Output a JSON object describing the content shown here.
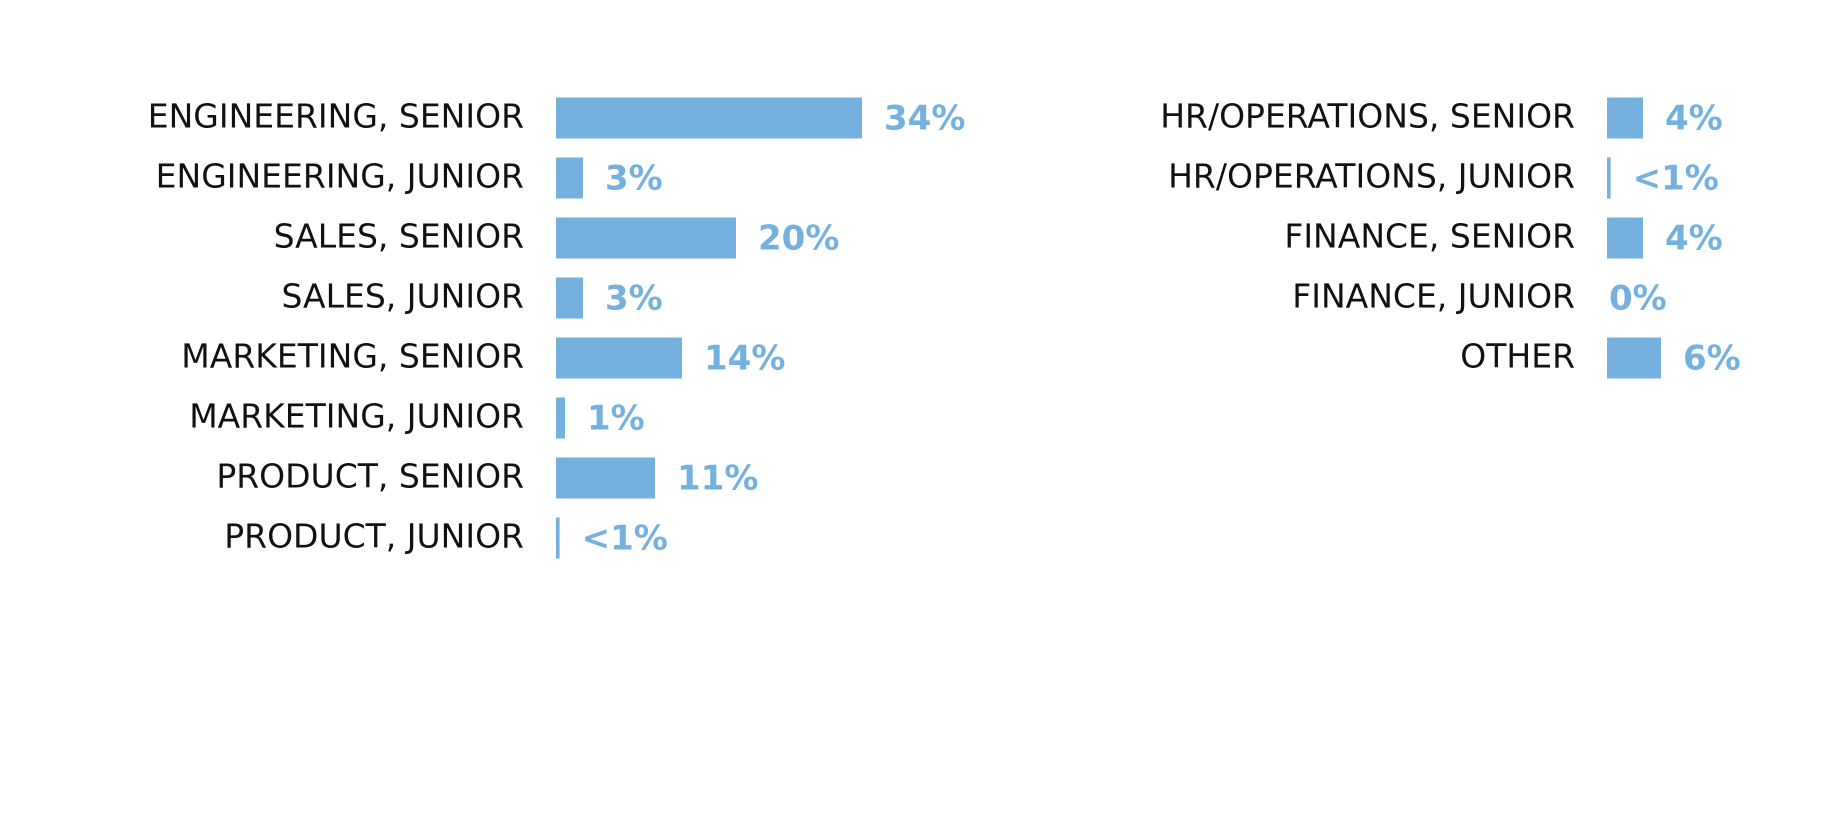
{
  "chart_data": [
    {
      "type": "bar",
      "orientation": "horizontal",
      "color": "#74b1df",
      "categories": [
        "ENGINEERING, SENIOR",
        "ENGINEERING, JUNIOR",
        "SALES, SENIOR",
        "SALES, JUNIOR",
        "MARKETING, SENIOR",
        "MARKETING, JUNIOR",
        "PRODUCT, SENIOR",
        "PRODUCT, JUNIOR"
      ],
      "values": [
        34,
        3,
        20,
        3,
        14,
        1,
        11,
        0.4
      ],
      "value_labels": [
        "34%",
        "3%",
        "20%",
        "3%",
        "14%",
        "1%",
        "11%",
        "<1%"
      ]
    },
    {
      "type": "bar",
      "orientation": "horizontal",
      "color": "#74b1df",
      "categories": [
        "HR/OPERATIONS, SENIOR",
        "HR/OPERATIONS, JUNIOR",
        "FINANCE, SENIOR",
        "FINANCE, JUNIOR",
        "OTHER"
      ],
      "values": [
        4,
        0.4,
        4,
        0,
        6
      ],
      "value_labels": [
        "4%",
        "<1%",
        "4%",
        "0%",
        "6%"
      ]
    }
  ]
}
